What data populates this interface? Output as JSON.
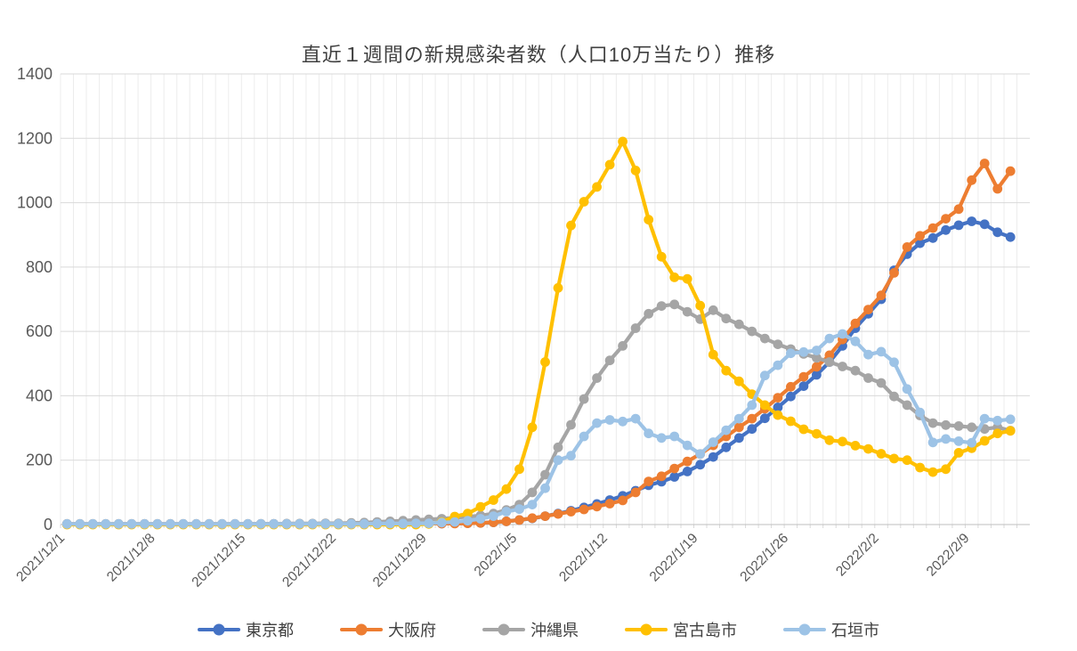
{
  "chart_data": {
    "type": "line",
    "title": "直近１週間の新規感染者数（人口10万当たり）推移",
    "xlabel": "",
    "ylabel": "",
    "ylim": [
      0,
      1400
    ],
    "y_tick_step": 200,
    "y_tick_labels": [
      "0",
      "200",
      "400",
      "600",
      "800",
      "1000",
      "1200",
      "1400"
    ],
    "x_tick_every": 7,
    "x_tick_labels": [
      "2021/12/1",
      "2021/12/8",
      "2021/12/15",
      "2021/12/22",
      "2021/12/29",
      "2022/1/5",
      "2022/1/12",
      "2022/1/19",
      "2022/1/26",
      "2022/2/2",
      "2022/2/9"
    ],
    "grid": {
      "horizontal": true,
      "vertical_daily": true
    },
    "legend_position": "bottom",
    "x": [
      "2021/12/1",
      "2021/12/2",
      "2021/12/3",
      "2021/12/4",
      "2021/12/5",
      "2021/12/6",
      "2021/12/7",
      "2021/12/8",
      "2021/12/9",
      "2021/12/10",
      "2021/12/11",
      "2021/12/12",
      "2021/12/13",
      "2021/12/14",
      "2021/12/15",
      "2021/12/16",
      "2021/12/17",
      "2021/12/18",
      "2021/12/19",
      "2021/12/20",
      "2021/12/21",
      "2021/12/22",
      "2021/12/23",
      "2021/12/24",
      "2021/12/25",
      "2021/12/26",
      "2021/12/27",
      "2021/12/28",
      "2021/12/29",
      "2021/12/30",
      "2021/12/31",
      "2022/1/1",
      "2022/1/2",
      "2022/1/3",
      "2022/1/4",
      "2022/1/5",
      "2022/1/6",
      "2022/1/7",
      "2022/1/8",
      "2022/1/9",
      "2022/1/10",
      "2022/1/11",
      "2022/1/12",
      "2022/1/13",
      "2022/1/14",
      "2022/1/15",
      "2022/1/16",
      "2022/1/17",
      "2022/1/18",
      "2022/1/19",
      "2022/1/20",
      "2022/1/21",
      "2022/1/22",
      "2022/1/23",
      "2022/1/24",
      "2022/1/25",
      "2022/1/26",
      "2022/1/27",
      "2022/1/28",
      "2022/1/29",
      "2022/1/30",
      "2022/1/31",
      "2022/2/1",
      "2022/2/2",
      "2022/2/3",
      "2022/2/4",
      "2022/2/5",
      "2022/2/6",
      "2022/2/7",
      "2022/2/8",
      "2022/2/9",
      "2022/2/10",
      "2022/2/11",
      "2022/2/12"
    ],
    "series": [
      {
        "name": "東京都",
        "color": "#4472C4",
        "values": [
          1,
          1,
          1,
          1,
          1,
          1,
          1,
          1,
          1,
          1,
          1,
          1,
          1,
          1,
          1,
          2,
          2,
          2,
          2,
          2,
          2,
          2,
          2,
          2,
          2,
          2,
          3,
          3,
          3,
          3,
          4,
          4,
          5,
          7,
          10,
          14,
          19,
          26,
          34,
          43,
          53,
          64,
          76,
          89,
          105,
          122,
          133,
          148,
          165,
          186,
          210,
          240,
          269,
          297,
          330,
          364,
          398,
          430,
          465,
          505,
          555,
          610,
          655,
          700,
          790,
          840,
          874,
          890,
          915,
          930,
          942,
          933,
          908,
          893
        ]
      },
      {
        "name": "大阪府",
        "color": "#ED7D31",
        "values": [
          2,
          2,
          2,
          2,
          2,
          2,
          2,
          2,
          2,
          2,
          2,
          2,
          2,
          2,
          2,
          2,
          2,
          2,
          2,
          2,
          2,
          2,
          2,
          2,
          2,
          2,
          2,
          3,
          3,
          3,
          3,
          4,
          5,
          7,
          10,
          14,
          20,
          26,
          33,
          40,
          47,
          56,
          65,
          75,
          100,
          134,
          150,
          174,
          196,
          219,
          246,
          274,
          302,
          329,
          360,
          394,
          428,
          459,
          490,
          526,
          575,
          625,
          668,
          712,
          782,
          862,
          897,
          921,
          950,
          980,
          1070,
          1122,
          1043,
          1098
        ]
      },
      {
        "name": "沖縄県",
        "color": "#A5A5A5",
        "values": [
          2,
          2,
          2,
          2,
          2,
          2,
          2,
          2,
          2,
          2,
          2,
          2,
          2,
          2,
          2,
          2,
          2,
          3,
          3,
          3,
          4,
          4,
          5,
          6,
          8,
          10,
          12,
          14,
          16,
          18,
          21,
          24,
          28,
          34,
          45,
          62,
          100,
          155,
          240,
          310,
          390,
          455,
          510,
          555,
          610,
          655,
          679,
          684,
          661,
          638,
          666,
          640,
          622,
          600,
          578,
          560,
          545,
          530,
          518,
          505,
          491,
          478,
          455,
          440,
          398,
          371,
          339,
          315,
          309,
          306,
          302,
          297,
          302,
          292
        ]
      },
      {
        "name": "宮古島市",
        "color": "#FFC000",
        "values": [
          0,
          0,
          0,
          0,
          0,
          0,
          0,
          0,
          0,
          0,
          0,
          0,
          0,
          0,
          0,
          0,
          0,
          0,
          0,
          0,
          0,
          0,
          0,
          0,
          0,
          0,
          0,
          0,
          2,
          8,
          25,
          34,
          55,
          76,
          110,
          172,
          302,
          505,
          735,
          929,
          1003,
          1049,
          1118,
          1190,
          1100,
          947,
          832,
          768,
          763,
          680,
          528,
          478,
          445,
          405,
          371,
          340,
          321,
          296,
          282,
          262,
          258,
          245,
          235,
          220,
          205,
          200,
          177,
          163,
          172,
          223,
          237,
          260,
          283,
          291
        ]
      },
      {
        "name": "石垣市",
        "color": "#9DC3E6",
        "values": [
          2,
          2,
          2,
          2,
          2,
          2,
          2,
          2,
          2,
          2,
          2,
          2,
          2,
          2,
          2,
          2,
          2,
          2,
          2,
          2,
          2,
          2,
          2,
          2,
          3,
          3,
          3,
          4,
          4,
          6,
          8,
          12,
          18,
          26,
          40,
          48,
          62,
          113,
          200,
          214,
          274,
          315,
          325,
          320,
          329,
          283,
          269,
          274,
          246,
          219,
          256,
          293,
          329,
          371,
          463,
          495,
          532,
          536,
          541,
          578,
          592,
          569,
          528,
          537,
          504,
          421,
          348,
          255,
          266,
          259,
          254,
          329,
          323,
          327
        ]
      }
    ],
    "style": {
      "background": "#FFFFFF",
      "title_color": "#404040",
      "tick_label_color": "#595959",
      "legend_label_color": "#404040",
      "major_gridline_color": "#D9D9D9",
      "minor_gridline_color": "#ECECEC",
      "axis_line_color": "#BFBFBF"
    }
  }
}
